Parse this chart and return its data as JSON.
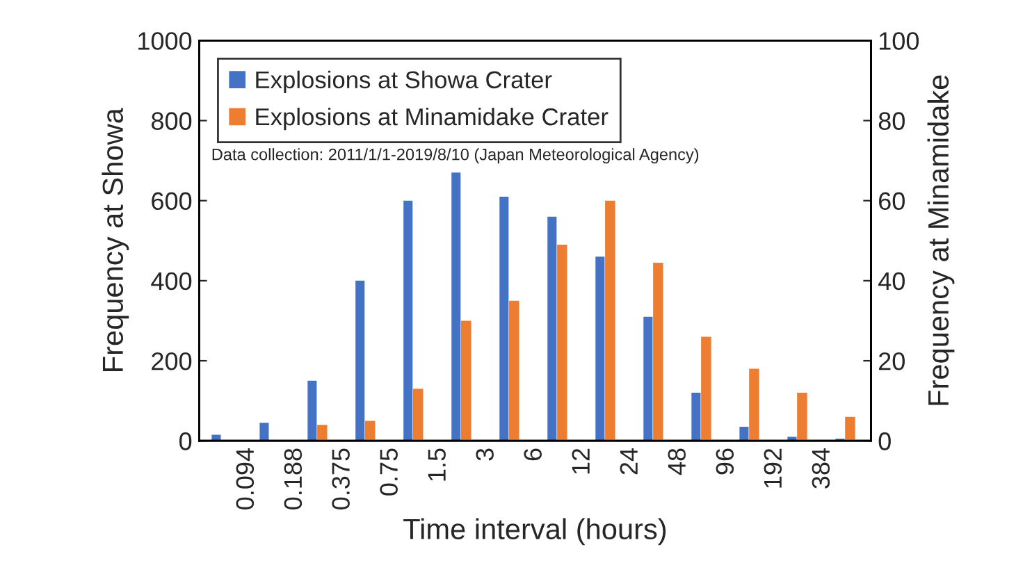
{
  "chart_data": {
    "type": "histogram",
    "bins": [
      0.047,
      0.094,
      0.188,
      0.375,
      0.75,
      1.5,
      3,
      6,
      12,
      24,
      48,
      96,
      192,
      384,
      768
    ],
    "series": [
      {
        "name": "Explosions at Showa Crater",
        "color": "#4472c4",
        "values": [
          15,
          45,
          150,
          400,
          600,
          670,
          610,
          560,
          460,
          310,
          120,
          35,
          10,
          5
        ]
      },
      {
        "name": "Explosions at Minamidake Crater",
        "color": "#ed7d31",
        "axis": "y2",
        "values": [
          0,
          0,
          4,
          5,
          13,
          30,
          35,
          49,
          60,
          44.5,
          26,
          18,
          12,
          6
        ]
      }
    ],
    "xlabel": "Time interval (hours)",
    "ylabel": "Frequency at Showa",
    "y2label": "Frequency at Minamidake",
    "log": "x",
    "xlim": [
      0.047,
      768
    ],
    "xticks": [
      0.094,
      0.188,
      0.375,
      0.75,
      1.5,
      3,
      6,
      12,
      24,
      48,
      96,
      192,
      384
    ],
    "ylim": [
      0,
      1000
    ],
    "yticks": [
      0,
      200,
      400,
      600,
      800,
      1000
    ],
    "y2lim": [
      0,
      100
    ],
    "y2ticks": [
      0,
      20,
      40,
      60,
      80,
      100
    ],
    "legend": "top left",
    "annotations": [
      "Data collection: 2011/1/1-2019/8/10 (Japan Meteorological Agency)"
    ]
  }
}
